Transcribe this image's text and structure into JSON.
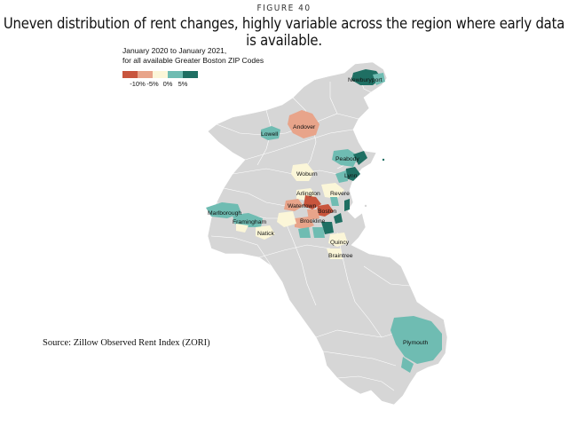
{
  "figure_label": "FIGURE 40",
  "title": "Uneven distribution of rent changes, highly variable across the region where early data is available.",
  "legend": {
    "line1": "January 2020 to January 2021,",
    "line2": "for all available Greater Boston ZIP Codes",
    "swatches": [
      {
        "name": "strong-decrease",
        "color": "#c8553d"
      },
      {
        "name": "moderate-decrease",
        "color": "#e8a48a"
      },
      {
        "name": "little-change",
        "color": "#fbf6d8"
      },
      {
        "name": "moderate-increase",
        "color": "#6fbcb2"
      },
      {
        "name": "strong-increase",
        "color": "#1f6f63"
      }
    ],
    "ticks": [
      "-10%",
      "-5%",
      "0%",
      "5%"
    ]
  },
  "colors": {
    "background": "#ffffff",
    "no_data": "#d6d6d6",
    "boundary": "#ffffff",
    "water": "#ffffff"
  },
  "places": {
    "newburyport": "Newburyport",
    "andover": "Andover",
    "lowell": "Lowell",
    "peabody": "Peabody",
    "lynn": "Lynn",
    "woburn": "Woburn",
    "arlington": "Arlington",
    "revere": "Revere",
    "watertown": "Watertown",
    "boston": "Boston",
    "brookline": "Brookline",
    "marlborough": "Marlborough",
    "framingham": "Framingham",
    "natick": "Natick",
    "quincy": "Quincy",
    "braintree": "Braintree",
    "plymouth": "Plymouth"
  },
  "source": "Source: Zillow Observed Rent Index (ZORI)"
}
